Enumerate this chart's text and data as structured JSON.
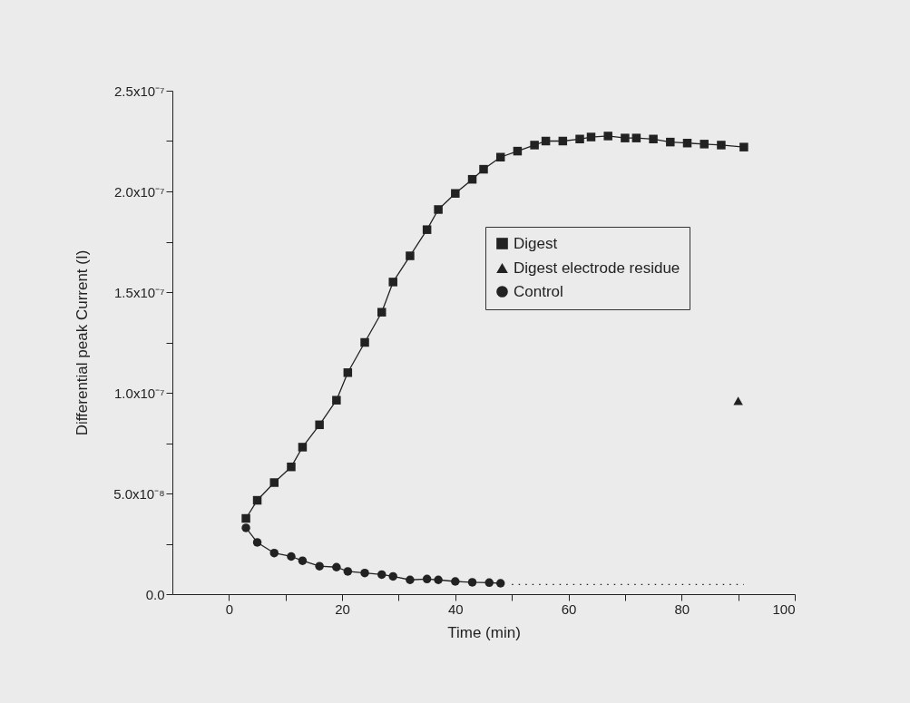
{
  "chart_data": {
    "type": "line",
    "xlabel": "Time (min)",
    "ylabel": "Differential peak Current (I)",
    "xlim": [
      -10,
      100
    ],
    "ylim": [
      0,
      2.5e-07
    ],
    "xticks": [
      0,
      {
        "value": 10,
        "label": null
      },
      20,
      {
        "value": 30,
        "label": null
      },
      40,
      {
        "value": 50,
        "label": null
      },
      60,
      {
        "value": 70,
        "label": null
      },
      80,
      {
        "value": 90,
        "label": null
      },
      100
    ],
    "yticks": [
      {
        "value": 0,
        "label": "0.0"
      },
      {
        "value": 2.5e-08,
        "label": null
      },
      {
        "value": 5e-08,
        "label": "5.0x10⁻⁸"
      },
      {
        "value": 7.5e-08,
        "label": null
      },
      {
        "value": 1e-07,
        "label": "1.0x10⁻⁷"
      },
      {
        "value": 1.25e-07,
        "label": null
      },
      {
        "value": 1.5e-07,
        "label": "1.5x10⁻⁷"
      },
      {
        "value": 1.75e-07,
        "label": null
      },
      {
        "value": 2e-07,
        "label": "2.0x10⁻⁷"
      },
      {
        "value": 2.25e-07,
        "label": null
      },
      {
        "value": 2.5e-07,
        "label": "2.5x10⁻⁷"
      }
    ],
    "legend": "right",
    "line_style": "solid",
    "series": [
      {
        "name": "Digest",
        "color": "#222222",
        "marker": "square",
        "x": [
          3,
          5,
          8,
          11,
          13,
          16,
          19,
          21,
          24,
          27,
          29,
          32,
          35,
          37,
          40,
          43,
          45,
          48,
          51,
          54,
          56,
          59,
          62,
          64,
          67,
          70,
          72,
          75,
          78,
          81,
          84,
          87,
          91
        ],
        "values": [
          3.76e-08,
          4.66e-08,
          5.54e-08,
          6.32e-08,
          7.3e-08,
          8.41e-08,
          9.63e-08,
          1.1e-07,
          1.25e-07,
          1.4e-07,
          1.55e-07,
          1.68e-07,
          1.81e-07,
          1.91e-07,
          1.99e-07,
          2.06e-07,
          2.11e-07,
          2.17e-07,
          2.2e-07,
          2.23e-07,
          2.25e-07,
          2.25e-07,
          2.26e-07,
          2.27e-07,
          2.275e-07,
          2.265e-07,
          2.265e-07,
          2.26e-07,
          2.245e-07,
          2.24e-07,
          2.235e-07,
          2.23e-07,
          2.22e-07
        ]
      },
      {
        "name": "Digest electrode residue",
        "type": "scatter",
        "color": "#222222",
        "marker": "triangle",
        "x": [
          90
        ],
        "values": [
          9.6e-08
        ]
      },
      {
        "name": "Control",
        "color": "#222222",
        "marker": "circle",
        "x": [
          3,
          5,
          8,
          11,
          13,
          16,
          19,
          21,
          24,
          27,
          29,
          32,
          35,
          37,
          40,
          43,
          46,
          48
        ],
        "values": [
          3.29e-08,
          2.57e-08,
          2.04e-08,
          1.87e-08,
          1.66e-08,
          1.39e-08,
          1.34e-08,
          1.13e-08,
          1.05e-08,
          9.7e-09,
          8.8e-09,
          7.1e-09,
          7.5e-09,
          7.1e-09,
          6.3e-09,
          5.9e-09,
          5.7e-09,
          5.4e-09
        ]
      },
      {
        "color": "#222222",
        "marker": "none",
        "line_style": "dotted",
        "x": [
          50,
          91
        ],
        "values": [
          4.8e-09,
          4.8e-09
        ]
      }
    ]
  }
}
